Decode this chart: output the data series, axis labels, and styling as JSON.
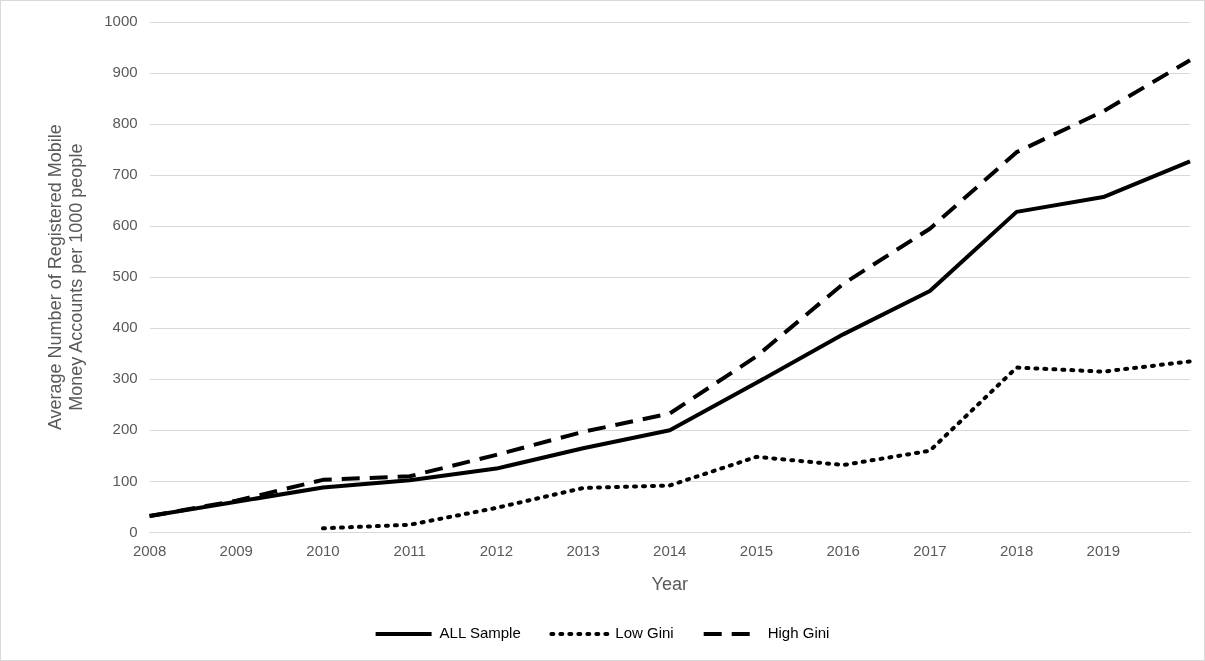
{
  "chart_data": {
    "type": "line",
    "xlabel": "Year",
    "ylabel": "Average Number of Registered Mobile Money Accounts per 1000 people",
    "categories": [
      "2008",
      "2009",
      "2010",
      "2011",
      "2012",
      "2013",
      "2014",
      "2015",
      "2016",
      "2017",
      "2018",
      "2019",
      null
    ],
    "series": [
      {
        "name": "ALL Sample",
        "color": "#000000",
        "line_style": "solid",
        "values": [
          32,
          60,
          88,
          102,
          125,
          165,
          200,
          293,
          388,
          473,
          628,
          657,
          727
        ]
      },
      {
        "name": "Low Gini",
        "color": "#000000",
        "line_style": "dotted",
        "values": [
          null,
          null,
          8,
          15,
          48,
          87,
          92,
          148,
          132,
          160,
          323,
          315,
          335
        ]
      },
      {
        "name": "High Gini",
        "color": "#000000",
        "line_style": "dashed",
        "values": [
          32,
          62,
          103,
          110,
          152,
          197,
          233,
          345,
          487,
          595,
          745,
          825,
          925
        ]
      }
    ],
    "ylim": [
      0,
      1000
    ],
    "yticks": [
      0,
      100,
      200,
      300,
      400,
      500,
      600,
      700,
      800,
      900,
      1000
    ],
    "grid": "y",
    "legend": "bottom",
    "marker": "none"
  }
}
